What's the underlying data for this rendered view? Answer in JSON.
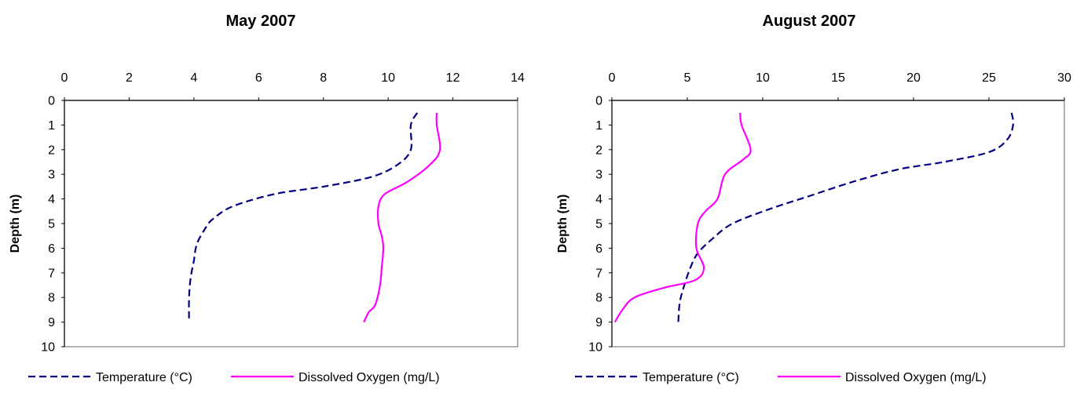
{
  "chart_data": [
    {
      "type": "line",
      "title": "May 2007",
      "xlabel": "",
      "ylabel": "Depth (m)",
      "xlim": [
        0,
        14
      ],
      "ylim": [
        0,
        10
      ],
      "xticks": [
        0,
        2,
        4,
        6,
        8,
        10,
        12,
        14
      ],
      "yticks": [
        0,
        1,
        2,
        3,
        4,
        5,
        6,
        7,
        8,
        9,
        10
      ],
      "y_inverted": true,
      "legend_position": "bottom",
      "series": [
        {
          "name": "Temperature (°C)",
          "color": "#000080",
          "style": "dashed",
          "points": [
            [
              10.9,
              0.5
            ],
            [
              10.7,
              1.0
            ],
            [
              10.7,
              2.0
            ],
            [
              10.3,
              2.6
            ],
            [
              9.5,
              3.1
            ],
            [
              8.0,
              3.5
            ],
            [
              6.5,
              3.8
            ],
            [
              5.2,
              4.3
            ],
            [
              4.6,
              4.8
            ],
            [
              4.4,
              5.1
            ],
            [
              4.1,
              5.8
            ],
            [
              4.0,
              6.5
            ],
            [
              3.9,
              7.2
            ],
            [
              3.85,
              8.0
            ],
            [
              3.85,
              9.0
            ]
          ]
        },
        {
          "name": "Dissolved Oxygen (mg/L)",
          "color": "#FF00FF",
          "style": "solid",
          "points": [
            [
              11.5,
              0.5
            ],
            [
              11.5,
              1.0
            ],
            [
              11.6,
              2.0
            ],
            [
              11.3,
              2.6
            ],
            [
              10.6,
              3.3
            ],
            [
              9.9,
              3.8
            ],
            [
              9.7,
              4.3
            ],
            [
              9.7,
              5.0
            ],
            [
              9.8,
              5.5
            ],
            [
              9.85,
              6.0
            ],
            [
              9.8,
              6.8
            ],
            [
              9.75,
              7.5
            ],
            [
              9.6,
              8.3
            ],
            [
              9.4,
              8.6
            ],
            [
              9.25,
              9.0
            ]
          ]
        }
      ]
    },
    {
      "type": "line",
      "title": "August 2007",
      "xlabel": "",
      "ylabel": "Depth (m)",
      "xlim": [
        0,
        30
      ],
      "ylim": [
        0,
        10
      ],
      "xticks": [
        0,
        5,
        10,
        15,
        20,
        25,
        30
      ],
      "yticks": [
        0,
        1,
        2,
        3,
        4,
        5,
        6,
        7,
        8,
        9,
        10
      ],
      "y_inverted": true,
      "legend_position": "bottom",
      "series": [
        {
          "name": "Temperature (°C)",
          "color": "#000080",
          "style": "dashed",
          "points": [
            [
              26.5,
              0.5
            ],
            [
              26.6,
              1.0
            ],
            [
              26.2,
              1.6
            ],
            [
              25.0,
              2.1
            ],
            [
              22.0,
              2.5
            ],
            [
              19.0,
              2.8
            ],
            [
              16.0,
              3.3
            ],
            [
              13.0,
              3.9
            ],
            [
              10.5,
              4.4
            ],
            [
              8.0,
              5.0
            ],
            [
              6.7,
              5.6
            ],
            [
              5.7,
              6.2
            ],
            [
              5.2,
              6.8
            ],
            [
              4.8,
              7.5
            ],
            [
              4.5,
              8.2
            ],
            [
              4.4,
              9.0
            ]
          ]
        },
        {
          "name": "Dissolved Oxygen (mg/L)",
          "color": "#FF00FF",
          "style": "solid",
          "points": [
            [
              8.5,
              0.5
            ],
            [
              8.6,
              1.0
            ],
            [
              9.2,
              2.0
            ],
            [
              8.7,
              2.4
            ],
            [
              7.5,
              3.0
            ],
            [
              7.0,
              4.0
            ],
            [
              6.2,
              4.5
            ],
            [
              5.7,
              5.0
            ],
            [
              5.6,
              6.0
            ],
            [
              6.1,
              6.8
            ],
            [
              5.5,
              7.3
            ],
            [
              3.5,
              7.6
            ],
            [
              1.5,
              8.0
            ],
            [
              0.7,
              8.5
            ],
            [
              0.2,
              9.0
            ]
          ]
        }
      ]
    }
  ]
}
